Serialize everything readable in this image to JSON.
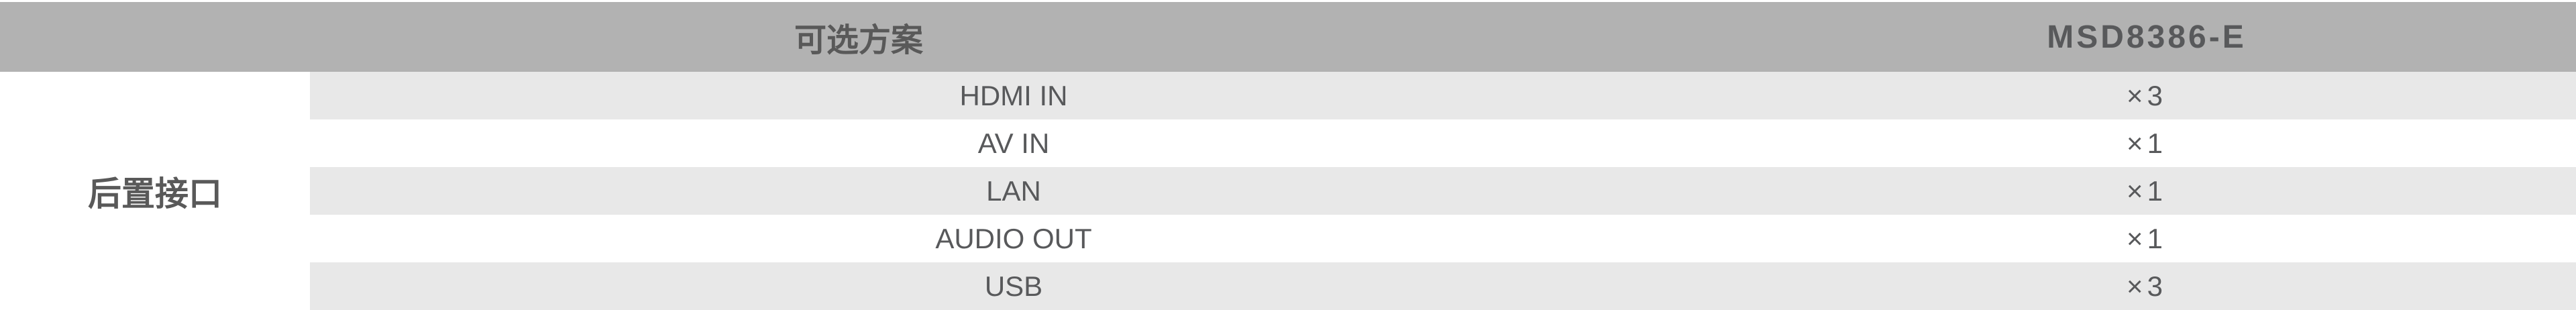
{
  "table": {
    "header": {
      "plan_label": "可选方案",
      "model_label": "MSD8386-E"
    },
    "group_label": "后置接口",
    "rows": [
      {
        "name": "HDMI IN",
        "value": "×3"
      },
      {
        "name": "AV IN",
        "value": "×1"
      },
      {
        "name": "LAN",
        "value": "×1"
      },
      {
        "name": "AUDIO OUT",
        "value": "×1"
      },
      {
        "name": "USB",
        "value": "×3"
      }
    ],
    "colors": {
      "header_bg": "#b2b2b2",
      "shaded_row_bg": "#e8e8e8",
      "header_text": "#595959",
      "body_text": "#58595b"
    }
  }
}
